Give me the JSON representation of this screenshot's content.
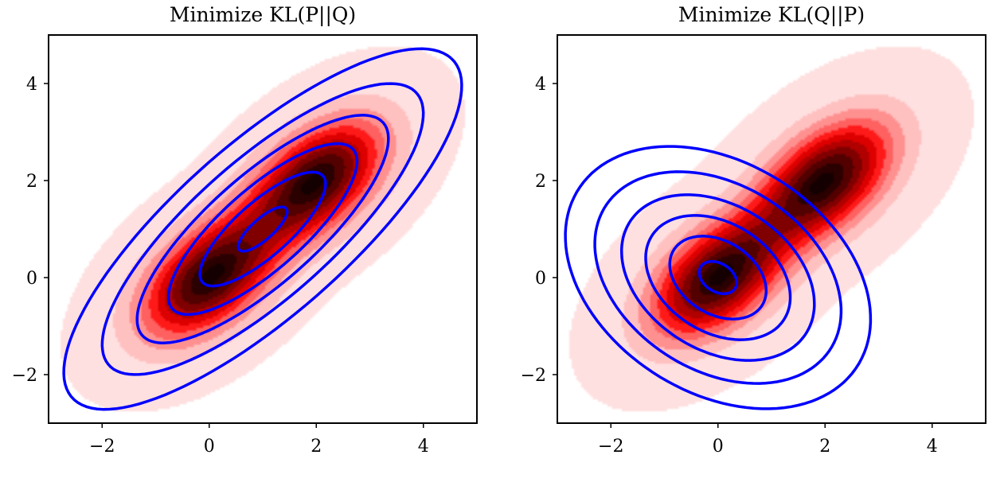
{
  "chart_data": [
    {
      "type": "contour",
      "title": "Minimize KL(P||Q)",
      "xlim": [
        -3,
        5
      ],
      "ylim": [
        -3,
        5
      ],
      "xticks": [
        "−2",
        "0",
        "2",
        "4"
      ],
      "yticks": [
        "−2",
        "0",
        "2",
        "4"
      ],
      "xtick_values": [
        -2,
        0,
        2,
        4
      ],
      "ytick_values": [
        -2,
        0,
        2,
        4
      ],
      "target_p": {
        "kind": "filled-contours",
        "colormap": "reds",
        "components": [
          {
            "weight": 0.5,
            "mean": [
              0,
              0
            ],
            "cov": [
              [
                0.7,
                0.35
              ],
              [
                0.35,
                0.7
              ]
            ]
          },
          {
            "weight": 0.5,
            "mean": [
              2,
              2
            ],
            "cov": [
              [
                0.7,
                0.35
              ],
              [
                0.35,
                0.7
              ]
            ]
          }
        ]
      },
      "approx_q": {
        "kind": "line-contours",
        "color": "#0000ff",
        "mean": [
          1,
          1
        ],
        "cov": [
          [
            1.7,
            1.35
          ],
          [
            1.35,
            1.7
          ]
        ]
      }
    },
    {
      "type": "contour",
      "title": "Minimize KL(Q||P)",
      "xlim": [
        -3,
        5
      ],
      "ylim": [
        -3,
        5
      ],
      "xticks": [
        "−2",
        "0",
        "2",
        "4"
      ],
      "yticks": [
        "−2",
        "0",
        "2",
        "4"
      ],
      "xtick_values": [
        -2,
        0,
        2,
        4
      ],
      "ytick_values": [
        -2,
        0,
        2,
        4
      ],
      "target_p": {
        "kind": "filled-contours",
        "colormap": "reds",
        "components": [
          {
            "weight": 0.5,
            "mean": [
              0,
              0
            ],
            "cov": [
              [
                0.7,
                0.35
              ],
              [
                0.35,
                0.7
              ]
            ]
          },
          {
            "weight": 0.5,
            "mean": [
              2,
              2
            ],
            "cov": [
              [
                0.7,
                0.35
              ],
              [
                0.35,
                0.7
              ]
            ]
          }
        ]
      },
      "approx_q": {
        "kind": "line-contours",
        "color": "#0000ff",
        "mean": [
          0,
          0
        ],
        "cov": [
          [
            1.0,
            -0.3
          ],
          [
            -0.3,
            0.9
          ]
        ]
      }
    }
  ]
}
